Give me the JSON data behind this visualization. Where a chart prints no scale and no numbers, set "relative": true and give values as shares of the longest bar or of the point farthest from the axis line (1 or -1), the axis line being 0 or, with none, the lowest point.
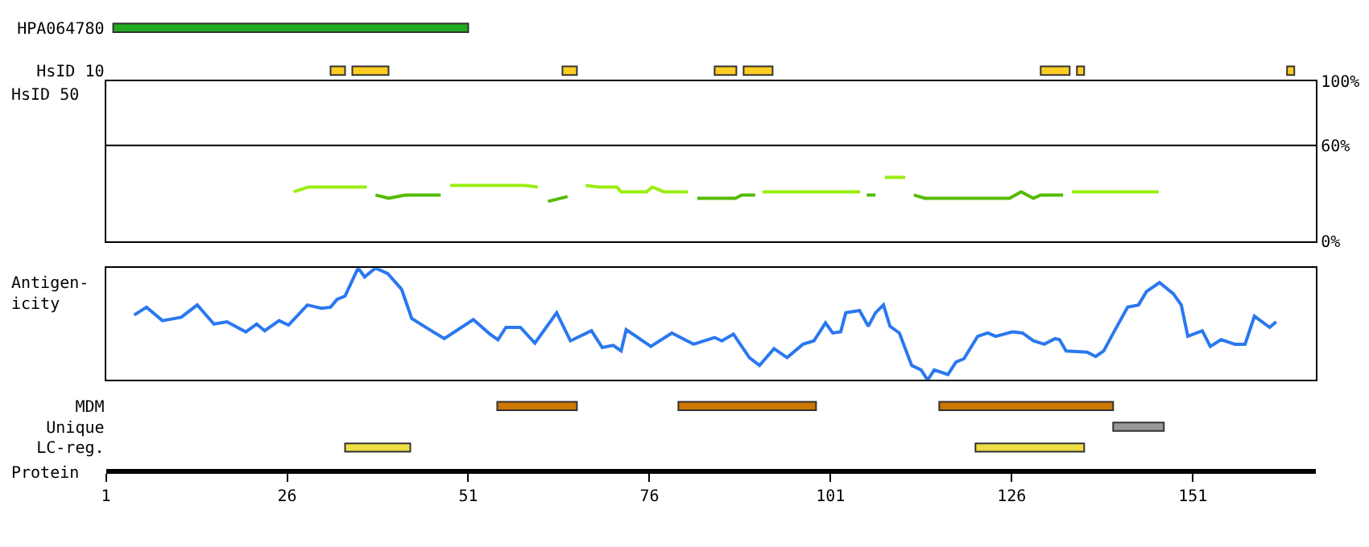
{
  "chart_data": [
    {
      "type": "bar",
      "orientation": "horizontal",
      "categories": [
        "HPA064780",
        "HsID 10"
      ],
      "xlim": [
        1,
        168
      ],
      "tick_labels": "y",
      "series": [
        {
          "color": "#22aa22",
          "values": [
            49,
            null
          ],
          "base": [
            2,
            null
          ]
        },
        {
          "color": "#ffcc22",
          "values": [
            null,
            2
          ],
          "base": [
            null,
            32
          ]
        },
        {
          "color": "#ffcc22",
          "values": [
            null,
            5
          ],
          "base": [
            null,
            35
          ]
        },
        {
          "color": "#ffcc22",
          "values": [
            null,
            2
          ],
          "base": [
            null,
            64
          ]
        },
        {
          "color": "#ffcc22",
          "values": [
            null,
            3
          ],
          "base": [
            null,
            85
          ]
        },
        {
          "color": "#ffcc22",
          "values": [
            null,
            4
          ],
          "base": [
            null,
            89
          ]
        },
        {
          "color": "#ffcc22",
          "values": [
            null,
            4
          ],
          "base": [
            null,
            130
          ]
        },
        {
          "color": "#ffcc22",
          "values": [
            null,
            1
          ],
          "base": [
            null,
            135
          ]
        },
        {
          "color": "#ffcc22",
          "values": [
            null,
            1
          ],
          "base": [
            null,
            164
          ]
        }
      ]
    },
    {
      "type": "line",
      "ylabel": "HsID 50",
      "xlim": [
        1,
        168
      ],
      "ylim": [
        0,
        100
      ],
      "yticks": [
        {
          "value": 0,
          "label": "0%"
        },
        {
          "value": 60,
          "label": "60%"
        },
        {
          "value": 100,
          "label": "100%"
        }
      ],
      "tick_labels": "y",
      "ref_lines": [
        {
          "axis": "y",
          "value": 60,
          "color": "#000000"
        }
      ],
      "x": [
        26.9,
        29,
        37,
        38.2,
        40,
        42.3,
        47.2,
        48.5,
        58.8,
        60.6,
        62,
        64.7,
        67.2,
        69,
        71.5,
        72.1,
        75.6,
        76.4,
        78,
        81.3,
        82.6,
        87.9,
        88.7,
        90.6,
        91.6,
        105.1,
        106,
        107.2,
        108.5,
        111.3,
        112.5,
        114,
        125.7,
        127.3,
        129,
        130,
        133.1,
        134.3,
        146.3
      ],
      "series": [
        {
          "color": "#99ee11",
          "values": [
            31,
            34,
            34,
            null,
            null,
            null,
            null,
            35,
            35,
            34,
            null,
            null,
            35,
            34,
            34,
            31,
            31,
            34,
            31,
            31,
            null,
            null,
            null,
            null,
            31,
            31,
            null,
            null,
            40,
            40,
            null,
            null,
            null,
            null,
            null,
            null,
            null,
            31,
            31
          ]
        },
        {
          "color": "#55bb00",
          "values": [
            null,
            null,
            null,
            29,
            27,
            29,
            29,
            null,
            null,
            null,
            25,
            28,
            null,
            null,
            null,
            null,
            null,
            null,
            null,
            null,
            27,
            27,
            29,
            29,
            null,
            null,
            29,
            29,
            null,
            null,
            29,
            27,
            27,
            31,
            27,
            29,
            29,
            null,
            null
          ]
        }
      ]
    },
    {
      "type": "line",
      "relative": true,
      "ylabel": "Antigen-\nicity",
      "xlim": [
        1,
        168
      ],
      "tick_labels": false,
      "x": [
        4.9,
        6.6,
        8.8,
        11.4,
        13.6,
        15.9,
        17.7,
        20.3,
        21.8,
        22.9,
        24.9,
        26.2,
        28.8,
        30.7,
        32,
        32.9,
        34,
        35.8,
        36.7,
        38.2,
        39.9,
        41.8,
        43.2,
        45.4,
        47.7,
        51.7,
        54,
        55.1,
        56.2,
        58.2,
        60.2,
        63.2,
        65.1,
        68,
        69.5,
        71,
        72.1,
        72.8,
        76.2,
        79.1,
        82.1,
        85,
        86,
        87.6,
        89.8,
        91.2,
        93.2,
        95,
        97.2,
        98.7,
        100.3,
        101.3,
        102.4,
        103.1,
        105,
        106.2,
        107.2,
        108.3,
        109.2,
        110.5,
        112.2,
        113.5,
        114.4,
        115.3,
        117.2,
        118.3,
        119.4,
        121.3,
        122.7,
        123.8,
        126.1,
        127.5,
        129,
        130.5,
        132,
        132.6,
        133.5,
        136.4,
        137.6,
        138.7,
        140.2,
        142,
        143.5,
        144.6,
        146.4,
        148.3,
        149.4,
        150.3,
        152.3,
        153.4,
        154.9,
        156.8,
        158.2,
        159.5,
        161.6,
        162.5
      ],
      "series": [
        {
          "color": "#2a78f0",
          "values": [
            0.58,
            0.65,
            0.53,
            0.56,
            0.67,
            0.5,
            0.52,
            0.43,
            0.5,
            0.44,
            0.53,
            0.49,
            0.67,
            0.64,
            0.65,
            0.72,
            0.75,
            1,
            0.92,
            1,
            0.95,
            0.81,
            0.55,
            0.46,
            0.37,
            0.54,
            0.41,
            0.36,
            0.47,
            0.47,
            0.33,
            0.6,
            0.35,
            0.44,
            0.29,
            0.31,
            0.26,
            0.45,
            0.3,
            0.42,
            0.32,
            0.38,
            0.35,
            0.41,
            0.2,
            0.13,
            0.28,
            0.2,
            0.32,
            0.35,
            0.51,
            0.42,
            0.43,
            0.6,
            0.62,
            0.48,
            0.6,
            0.67,
            0.48,
            0.42,
            0.13,
            0.09,
            0,
            0.09,
            0.05,
            0.16,
            0.19,
            0.39,
            0.42,
            0.39,
            0.43,
            0.42,
            0.35,
            0.32,
            0.37,
            0.36,
            0.26,
            0.25,
            0.21,
            0.26,
            0.44,
            0.65,
            0.67,
            0.79,
            0.87,
            0.77,
            0.67,
            0.39,
            0.44,
            0.3,
            0.36,
            0.32,
            0.32,
            0.57,
            0.47,
            0.52
          ]
        }
      ]
    },
    {
      "type": "bar",
      "orientation": "horizontal",
      "categories": [
        "MDM",
        "Unique",
        "LC-reg."
      ],
      "xlabel": "Protein",
      "xlim": [
        1,
        168
      ],
      "xticks": [
        1,
        26,
        51,
        76,
        101,
        126,
        151
      ],
      "series": [
        {
          "color": "#cc7700",
          "values": [
            11,
            null,
            null
          ],
          "base": [
            55,
            null,
            null
          ]
        },
        {
          "color": "#cc7700",
          "values": [
            19,
            null,
            null
          ],
          "base": [
            80,
            null,
            null
          ]
        },
        {
          "color": "#cc7700",
          "values": [
            24,
            null,
            null
          ],
          "base": [
            116,
            null,
            null
          ]
        },
        {
          "color": "#999999",
          "values": [
            null,
            7,
            null
          ],
          "base": [
            null,
            140,
            null
          ]
        },
        {
          "color": "#eedd44",
          "values": [
            null,
            null,
            9
          ],
          "base": [
            null,
            null,
            34
          ]
        },
        {
          "color": "#eedd44",
          "values": [
            null,
            null,
            15
          ],
          "base": [
            null,
            null,
            121
          ]
        }
      ]
    }
  ]
}
